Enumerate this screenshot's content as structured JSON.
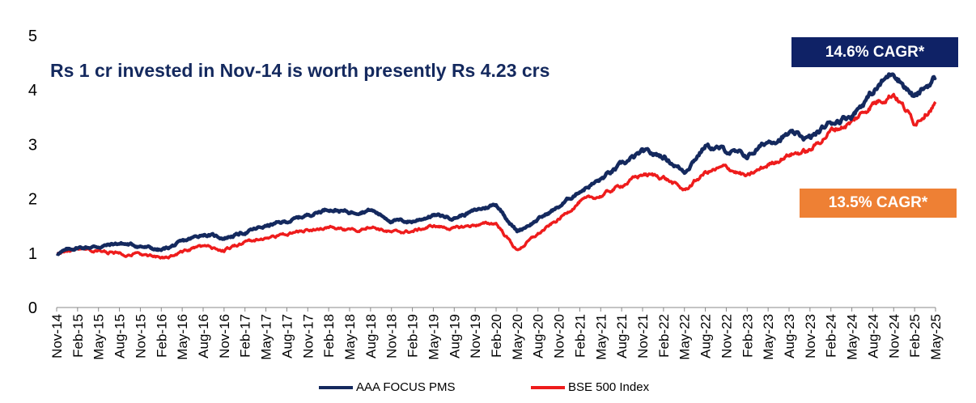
{
  "headline": "Rs 1 cr invested in Nov-14 is worth presently Rs 4.23 crs",
  "badges": {
    "pms": {
      "label": "14.6% CAGR*",
      "color": "#0f2266"
    },
    "bse": {
      "label": "13.5% CAGR*",
      "color": "#ee8034"
    }
  },
  "legend": {
    "pms": "AAA FOCUS PMS",
    "bse": "BSE 500 Index"
  },
  "chart_data": {
    "type": "line",
    "title": "",
    "xlabel": "",
    "ylabel": "",
    "ylim": [
      0,
      5
    ],
    "yticks": [
      "0",
      "1",
      "2",
      "3",
      "4",
      "5"
    ],
    "grid": false,
    "legend_position": "bottom",
    "categories": [
      "Nov-14",
      "Feb-15",
      "May-15",
      "Aug-15",
      "Nov-15",
      "Feb-16",
      "May-16",
      "Aug-16",
      "Nov-16",
      "Feb-17",
      "May-17",
      "Aug-17",
      "Nov-17",
      "Feb-18",
      "May-18",
      "Aug-18",
      "Nov-18",
      "Feb-19",
      "May-19",
      "Aug-19",
      "Nov-19",
      "Feb-20",
      "May-20",
      "Aug-20",
      "Nov-20",
      "Feb-21",
      "May-21",
      "Aug-21",
      "Nov-21",
      "Feb-22",
      "May-22",
      "Aug-22",
      "Nov-22",
      "Feb-23",
      "May-23",
      "Aug-23",
      "Nov-23",
      "Feb-24",
      "May-24",
      "Aug-24",
      "Nov-24",
      "Feb-25",
      "May-25"
    ],
    "series": [
      {
        "name": "AAA FOCUS PMS",
        "color": "#14295e",
        "values": [
          1.0,
          1.1,
          1.12,
          1.18,
          1.13,
          1.05,
          1.2,
          1.35,
          1.28,
          1.38,
          1.5,
          1.58,
          1.7,
          1.82,
          1.75,
          1.8,
          1.6,
          1.58,
          1.7,
          1.65,
          1.78,
          1.9,
          1.4,
          1.62,
          1.85,
          2.15,
          2.35,
          2.62,
          2.85,
          2.78,
          2.5,
          2.98,
          2.88,
          2.78,
          3.05,
          3.18,
          3.1,
          3.4,
          3.55,
          3.95,
          4.35,
          3.85,
          4.23
        ]
      },
      {
        "name": "BSE 500 Index",
        "color": "#ee1c1c",
        "values": [
          1.0,
          1.05,
          1.03,
          1.0,
          0.98,
          0.9,
          1.02,
          1.12,
          1.05,
          1.2,
          1.28,
          1.35,
          1.42,
          1.48,
          1.4,
          1.5,
          1.38,
          1.4,
          1.5,
          1.45,
          1.52,
          1.55,
          1.05,
          1.35,
          1.62,
          1.95,
          2.05,
          2.25,
          2.45,
          2.4,
          2.15,
          2.48,
          2.58,
          2.4,
          2.62,
          2.82,
          2.88,
          3.25,
          3.4,
          3.75,
          3.95,
          3.4,
          3.78
        ]
      }
    ]
  }
}
